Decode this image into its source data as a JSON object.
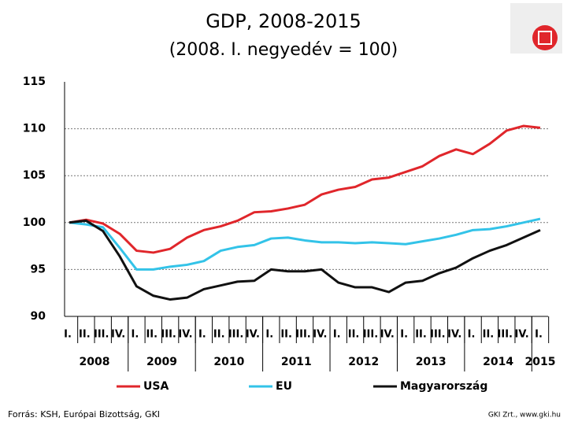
{
  "chart_data": {
    "type": "line",
    "title": "GDP, 2008-2015",
    "subtitle": "(2008. I. negyedév = 100)",
    "categories": [
      "I.",
      "II.",
      "III.",
      "IV.",
      "I.",
      "II.",
      "III.",
      "IV.",
      "I.",
      "II.",
      "III.",
      "IV.",
      "I.",
      "II.",
      "III.",
      "IV.",
      "I.",
      "II.",
      "III.",
      "IV.",
      "I.",
      "II.",
      "III.",
      "IV.",
      "I.",
      "II.",
      "III.",
      "IV.",
      "I."
    ],
    "year_labels": [
      "2008",
      "2009",
      "2010",
      "2011",
      "2012",
      "2013",
      "2014",
      "2015"
    ],
    "series": [
      {
        "name": "USA",
        "color": "#e0262b",
        "values": [
          100,
          100.3,
          99.9,
          98.8,
          97.0,
          96.8,
          97.2,
          98.4,
          99.2,
          99.6,
          100.2,
          101.1,
          101.2,
          101.5,
          101.9,
          103.0,
          103.5,
          103.8,
          104.6,
          104.8,
          105.4,
          106.0,
          107.1,
          107.8,
          107.3,
          108.4,
          109.8,
          110.3,
          110.1
        ]
      },
      {
        "name": "EU",
        "color": "#33c3e8",
        "values": [
          100,
          99.8,
          99.5,
          97.3,
          95.0,
          95.0,
          95.3,
          95.5,
          95.9,
          97.0,
          97.4,
          97.6,
          98.3,
          98.4,
          98.1,
          97.9,
          97.9,
          97.8,
          97.9,
          97.8,
          97.7,
          98.0,
          98.3,
          98.7,
          99.2,
          99.3,
          99.6,
          100.0,
          100.4
        ]
      },
      {
        "name": "Magyarország",
        "color": "#111111",
        "values": [
          100,
          100.2,
          99.1,
          96.4,
          93.2,
          92.2,
          91.8,
          92.0,
          92.9,
          93.3,
          93.7,
          93.8,
          95.0,
          94.8,
          94.8,
          95.0,
          93.6,
          93.1,
          93.1,
          92.6,
          93.6,
          93.8,
          94.6,
          95.2,
          96.2,
          97.0,
          97.6,
          98.4,
          99.2
        ]
      }
    ],
    "ylim": [
      90,
      115
    ],
    "yticks": [
      90,
      95,
      100,
      105,
      110,
      115
    ],
    "grid": true,
    "source": "Forrás: KSH, Európai Bizottság, GKI",
    "credit": "GKI Zrt., www.gki.hu"
  }
}
